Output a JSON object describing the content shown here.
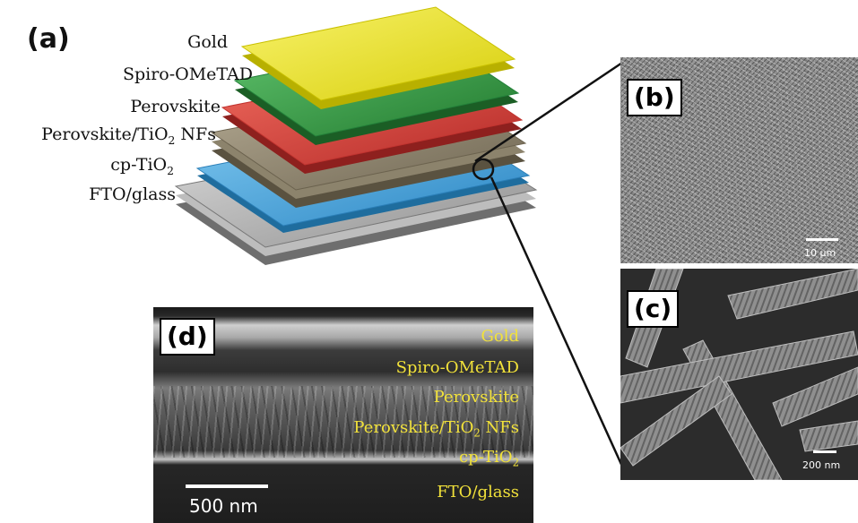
{
  "panel_a": {
    "label": "(a)",
    "layers": [
      {
        "name": "Gold",
        "color": "#e8e21a"
      },
      {
        "name": "Spiro-OMeTAD",
        "color": "#2e9a3c"
      },
      {
        "name": "Perovskite",
        "color": "#d23a36"
      },
      {
        "name_pre": "Perovskite/TiO",
        "name_sub": "2",
        "name_post": " NFs",
        "color": "#8a7f6a"
      },
      {
        "name_pre": "cp-TiO",
        "name_sub": "2",
        "color": "#3a9fd8"
      },
      {
        "name": "FTO/glass",
        "color": "#a9a9a9"
      }
    ]
  },
  "panel_b": {
    "label": "(b)",
    "scale_bar": "10 µm"
  },
  "panel_c": {
    "label": "(c)",
    "scale_bar": "200 nm"
  },
  "panel_d": {
    "label": "(d)",
    "scale_bar": "500 nm",
    "layers": {
      "gold": "Gold",
      "spiro": "Spiro-OMeTAD",
      "perovskite": "Perovskite",
      "nfs_pre": "Perovskite/TiO",
      "nfs_sub": "2",
      "nfs_post": " NFs",
      "cp_pre": "cp-TiO",
      "cp_sub": "2",
      "fto": "FTO/glass"
    }
  }
}
